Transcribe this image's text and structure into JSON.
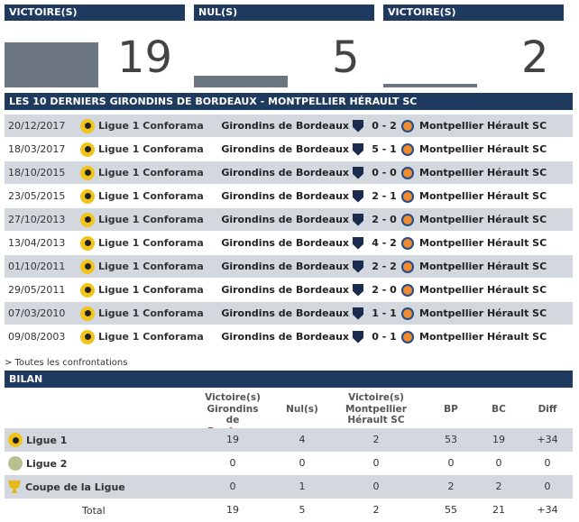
{
  "summary": {
    "home_label": "VICTOIRE(S)",
    "draw_label": "NUL(S)",
    "away_label": "VICTOIRE(S)",
    "home_wins": "19",
    "draws": "5",
    "away_wins": "2",
    "home_share": 0.73,
    "draw_share": 0.19,
    "away_share": 0.08
  },
  "last_matches": {
    "title": "LES 10 DERNIERS GIRONDINS DE BORDEAUX - MONTPELLIER HÉRAULT SC",
    "rows": [
      {
        "date": "20/12/2017",
        "competition": "Ligue 1 Conforama",
        "home": "Girondins de Bordeaux",
        "score": "0 - 2",
        "away": "Montpellier Hérault SC"
      },
      {
        "date": "18/03/2017",
        "competition": "Ligue 1 Conforama",
        "home": "Girondins de Bordeaux",
        "score": "5 - 1",
        "away": "Montpellier Hérault SC"
      },
      {
        "date": "18/10/2015",
        "competition": "Ligue 1 Conforama",
        "home": "Girondins de Bordeaux",
        "score": "0 - 0",
        "away": "Montpellier Hérault SC"
      },
      {
        "date": "23/05/2015",
        "competition": "Ligue 1 Conforama",
        "home": "Girondins de Bordeaux",
        "score": "2 - 1",
        "away": "Montpellier Hérault SC"
      },
      {
        "date": "27/10/2013",
        "competition": "Ligue 1 Conforama",
        "home": "Girondins de Bordeaux",
        "score": "2 - 0",
        "away": "Montpellier Hérault SC"
      },
      {
        "date": "13/04/2013",
        "competition": "Ligue 1 Conforama",
        "home": "Girondins de Bordeaux",
        "score": "4 - 2",
        "away": "Montpellier Hérault SC"
      },
      {
        "date": "01/10/2011",
        "competition": "Ligue 1 Conforama",
        "home": "Girondins de Bordeaux",
        "score": "2 - 2",
        "away": "Montpellier Hérault SC"
      },
      {
        "date": "29/05/2011",
        "competition": "Ligue 1 Conforama",
        "home": "Girondins de Bordeaux",
        "score": "2 - 0",
        "away": "Montpellier Hérault SC"
      },
      {
        "date": "07/03/2010",
        "competition": "Ligue 1 Conforama",
        "home": "Girondins de Bordeaux",
        "score": "1 - 1",
        "away": "Montpellier Hérault SC"
      },
      {
        "date": "09/08/2003",
        "competition": "Ligue 1 Conforama",
        "home": "Girondins de Bordeaux",
        "score": "0 - 1",
        "away": "Montpellier Hérault SC"
      }
    ],
    "all_link": "> Toutes les confrontations"
  },
  "bilan": {
    "title": "BILAN",
    "headers": {
      "home_wins": "Victoire(s) Girondins de Bordeaux",
      "draws": "Nul(s)",
      "away_wins": "Victoire(s) Montpellier Hérault SC",
      "bp": "BP",
      "bc": "BC",
      "diff": "Diff"
    },
    "rows": [
      {
        "label": "Ligue 1",
        "icon": "ligue1-icon",
        "home_wins": "19",
        "draws": "4",
        "away_wins": "2",
        "bp": "53",
        "bc": "19",
        "diff": "+34"
      },
      {
        "label": "Ligue 2",
        "icon": "ligue2-icon",
        "home_wins": "0",
        "draws": "0",
        "away_wins": "0",
        "bp": "0",
        "bc": "0",
        "diff": "0"
      },
      {
        "label": "Coupe de la Ligue",
        "icon": "trophy-icon",
        "home_wins": "0",
        "draws": "1",
        "away_wins": "0",
        "bp": "2",
        "bc": "2",
        "diff": "0"
      },
      {
        "label": "Total",
        "icon": "",
        "home_wins": "19",
        "draws": "5",
        "away_wins": "2",
        "bp": "55",
        "bc": "21",
        "diff": "+34"
      }
    ]
  },
  "colors": {
    "header_bg": "#1f3a5f",
    "row_alt": "#d3d8de",
    "bar": "#6b7680"
  }
}
